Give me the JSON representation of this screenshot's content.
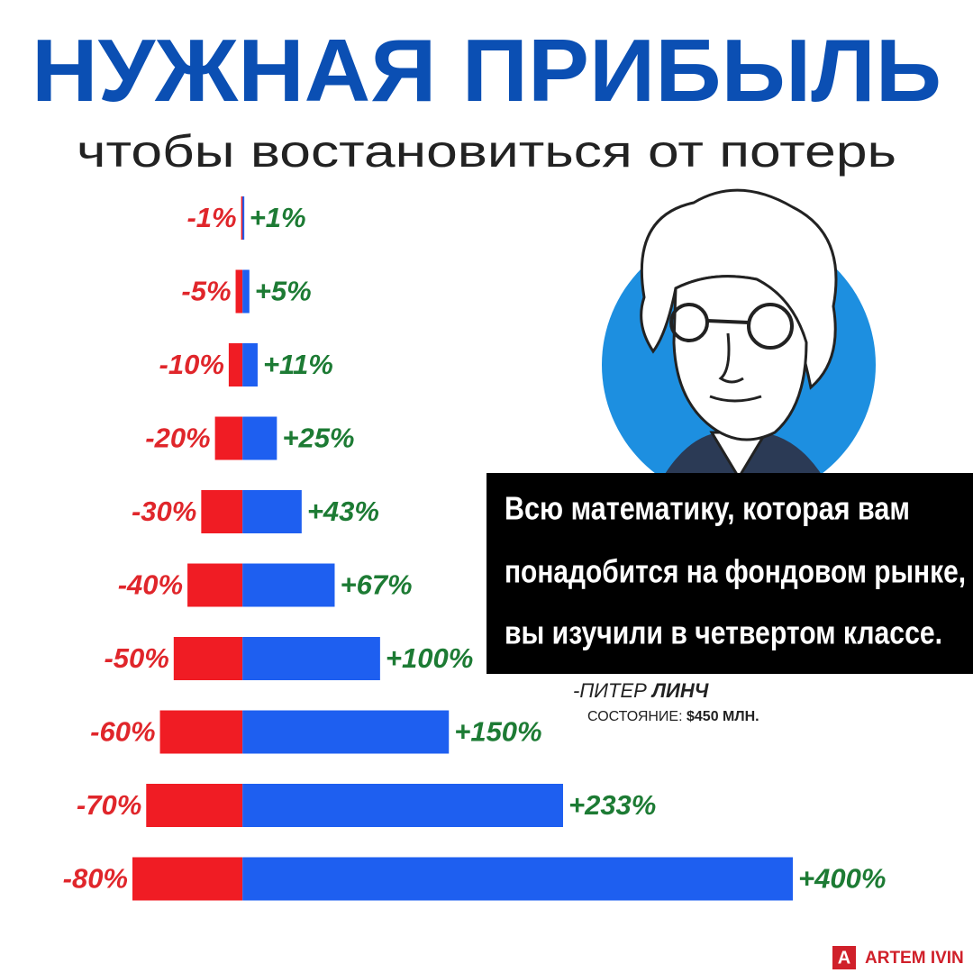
{
  "chart_data": {
    "type": "diverging-bar",
    "title": "НУЖНАЯ ПРИБЫЛЬ",
    "subtitle": "чтобы востановиться от потерь",
    "xlim": [
      -80,
      400
    ],
    "series": [
      {
        "color": "#f01c24",
        "label_color": "#e0262b",
        "values": [
          -1,
          -5,
          -10,
          -20,
          -30,
          -40,
          -50,
          -60,
          -70,
          -80
        ],
        "value_labels": [
          "-1%",
          "-5%",
          "-10%",
          "-20%",
          "-30%",
          "-40%",
          "-50%",
          "-60%",
          "-70%",
          "-80%"
        ]
      },
      {
        "color": "#1e5ff0",
        "label_color": "#1d7b34",
        "values": [
          1,
          5,
          11,
          25,
          43,
          67,
          100,
          150,
          233,
          400
        ],
        "value_labels": [
          "+1%",
          "+5%",
          "+11%",
          "+25%",
          "+43%",
          "+67%",
          "+100%",
          "+150%",
          "+233%",
          "+400%"
        ]
      }
    ],
    "annotations": {
      "quote": [
        "Всю математику, которая вам",
        "понадобится на фондовом рынке,",
        "вы изучили в четвертом классе."
      ],
      "author_prefix": "-ПИТЕР",
      "author": "ЛИНЧ",
      "net_worth_label": "СОСТОЯНИЕ:",
      "net_worth": "$450 МЛН.",
      "brand_icon": "A",
      "brand": "ARTEM IVIN"
    }
  }
}
